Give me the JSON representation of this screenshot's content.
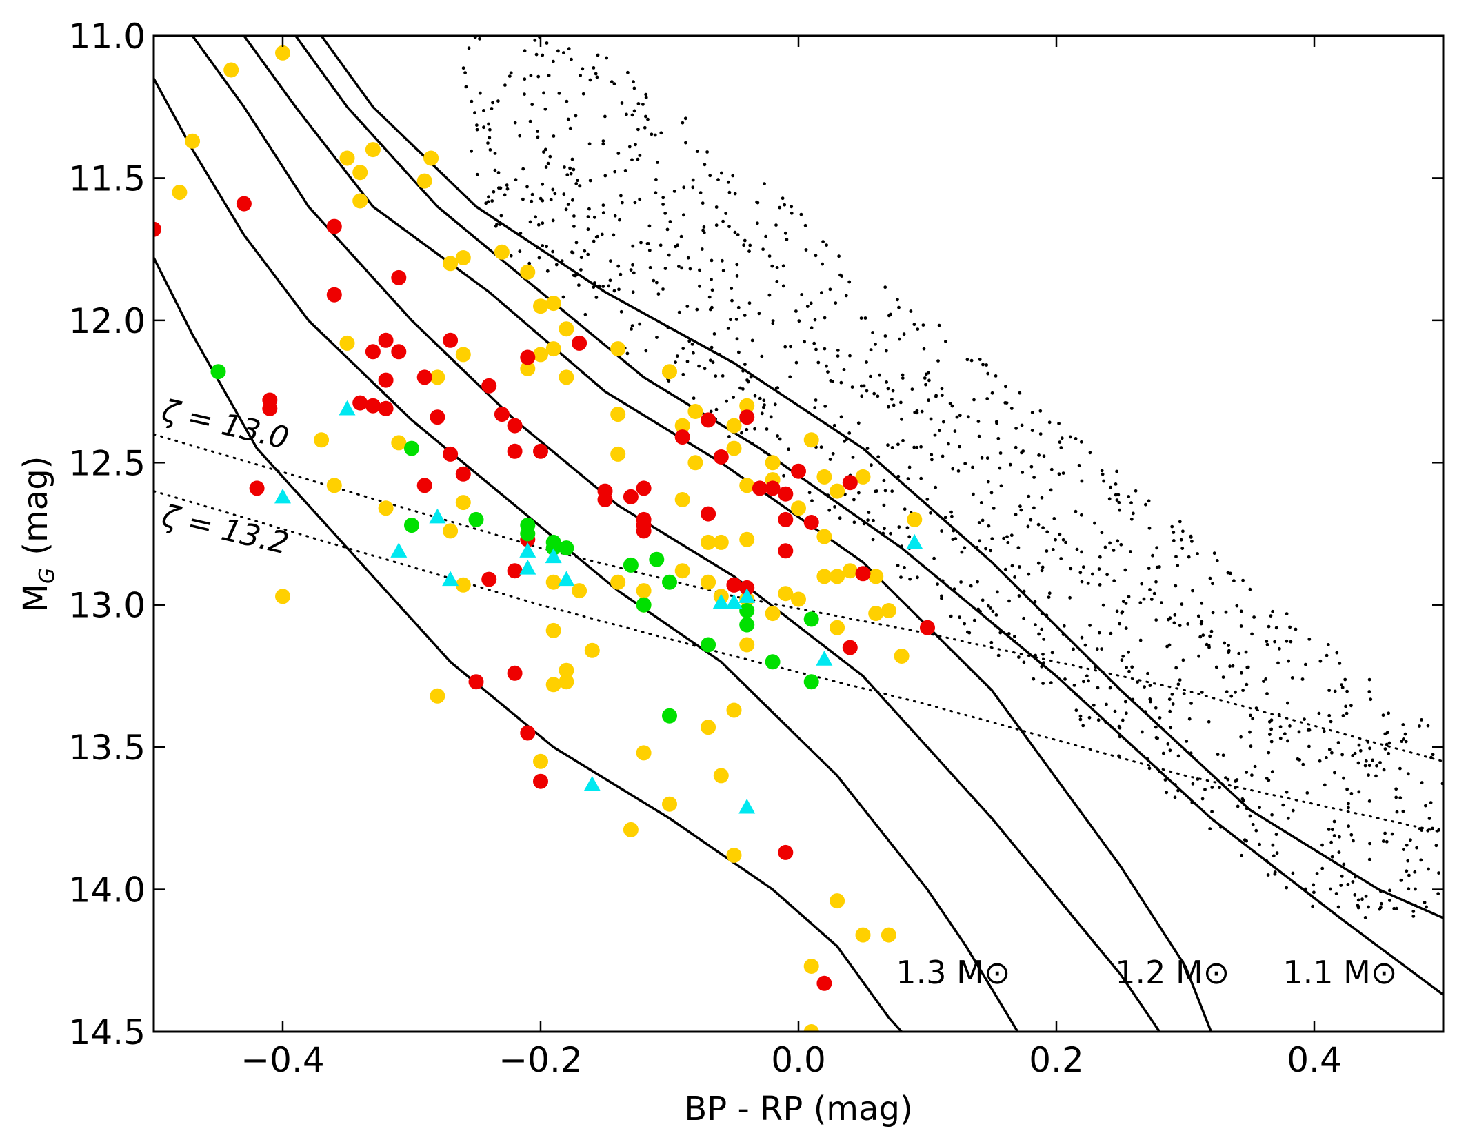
{
  "chart_data": {
    "type": "scatter",
    "xlabel": "BP - RP (mag)",
    "ylabel": "M_G (mag)",
    "ylabel_main": "M",
    "ylabel_sub": "G",
    "ylabel_unit": "(mag)",
    "xlim": [
      -0.5,
      0.5
    ],
    "ylim": [
      14.5,
      11.0
    ],
    "y_inverted": true,
    "x_ticks": [
      -0.4,
      -0.2,
      0.0,
      0.2,
      0.4
    ],
    "x_tick_labels": [
      "−0.4",
      "−0.2",
      "0.0",
      "0.2",
      "0.4"
    ],
    "y_ticks": [
      11.0,
      11.5,
      12.0,
      12.5,
      13.0,
      13.5,
      14.0,
      14.5
    ],
    "y_tick_labels": [
      "11.0",
      "11.5",
      "12.0",
      "12.5",
      "13.0",
      "13.5",
      "14.0",
      "14.5"
    ],
    "colors": {
      "yellow": "#ffd000",
      "red": "#ee0000",
      "green": "#00e000",
      "cyan": "#00e8f0",
      "line": "#000000",
      "background": "#ffffff"
    },
    "mass_tracks": [
      {
        "label": "1.1 M⊙",
        "label_pos": [
          0.42,
          14.33
        ],
        "points": [
          [
            -0.37,
            11.0
          ],
          [
            -0.33,
            11.25
          ],
          [
            -0.25,
            11.6
          ],
          [
            -0.15,
            11.9
          ],
          [
            -0.05,
            12.15
          ],
          [
            0.05,
            12.45
          ],
          [
            0.15,
            12.85
          ],
          [
            0.25,
            13.3
          ],
          [
            0.35,
            13.72
          ],
          [
            0.45,
            14.0
          ],
          [
            0.5,
            14.1
          ]
        ]
      },
      {
        "label": "",
        "points": [
          [
            -0.39,
            11.0
          ],
          [
            -0.35,
            11.25
          ],
          [
            -0.28,
            11.6
          ],
          [
            -0.2,
            11.9
          ],
          [
            -0.12,
            12.2
          ],
          [
            -0.03,
            12.45
          ],
          [
            0.08,
            12.8
          ],
          [
            0.2,
            13.25
          ],
          [
            0.32,
            13.75
          ],
          [
            0.42,
            14.1
          ],
          [
            0.5,
            14.37
          ]
        ]
      },
      {
        "label": "1.2 M⊙",
        "label_pos": [
          0.29,
          14.33
        ],
        "points": [
          [
            -0.43,
            11.0
          ],
          [
            -0.39,
            11.25
          ],
          [
            -0.33,
            11.6
          ],
          [
            -0.24,
            11.9
          ],
          [
            -0.15,
            12.25
          ],
          [
            -0.06,
            12.5
          ],
          [
            0.05,
            12.85
          ],
          [
            0.15,
            13.3
          ],
          [
            0.25,
            13.92
          ],
          [
            0.3,
            14.27
          ],
          [
            0.32,
            14.5
          ]
        ]
      },
      {
        "label": "",
        "points": [
          [
            -0.47,
            11.0
          ],
          [
            -0.43,
            11.25
          ],
          [
            -0.38,
            11.6
          ],
          [
            -0.3,
            12.0
          ],
          [
            -0.22,
            12.35
          ],
          [
            -0.14,
            12.65
          ],
          [
            -0.05,
            12.9
          ],
          [
            0.05,
            13.25
          ],
          [
            0.15,
            13.75
          ],
          [
            0.25,
            14.3
          ],
          [
            0.28,
            14.5
          ]
        ]
      },
      {
        "label": "1.3 M⊙",
        "label_pos": [
          0.12,
          14.33
        ],
        "points": [
          [
            -0.5,
            11.15
          ],
          [
            -0.47,
            11.4
          ],
          [
            -0.43,
            11.7
          ],
          [
            -0.38,
            12.0
          ],
          [
            -0.3,
            12.35
          ],
          [
            -0.22,
            12.65
          ],
          [
            -0.14,
            12.95
          ],
          [
            -0.06,
            13.2
          ],
          [
            0.03,
            13.6
          ],
          [
            0.1,
            14.0
          ],
          [
            0.13,
            14.2
          ],
          [
            0.17,
            14.5
          ]
        ]
      },
      {
        "label": "",
        "points": [
          [
            -0.5,
            11.78
          ],
          [
            -0.47,
            12.05
          ],
          [
            -0.42,
            12.45
          ],
          [
            -0.35,
            12.8
          ],
          [
            -0.27,
            13.2
          ],
          [
            -0.19,
            13.5
          ],
          [
            -0.1,
            13.75
          ],
          [
            -0.02,
            14.0
          ],
          [
            0.03,
            14.2
          ],
          [
            0.07,
            14.45
          ],
          [
            0.08,
            14.5
          ]
        ]
      }
    ],
    "iso_zeta_lines": [
      {
        "label": "ζ = 13.0",
        "label_pos": [
          -0.495,
          12.35
        ],
        "label_angle": 13,
        "points": [
          [
            -0.5,
            12.4
          ],
          [
            -0.35,
            12.6
          ],
          [
            -0.2,
            12.8
          ],
          [
            -0.05,
            12.97
          ],
          [
            0.1,
            13.1
          ],
          [
            0.3,
            13.3
          ],
          [
            0.5,
            13.55
          ]
        ]
      },
      {
        "label": "ζ = 13.2",
        "label_pos": [
          -0.495,
          12.72
        ],
        "label_angle": 13,
        "points": [
          [
            -0.5,
            12.6
          ],
          [
            -0.35,
            12.8
          ],
          [
            -0.2,
            13.0
          ],
          [
            -0.05,
            13.18
          ],
          [
            0.1,
            13.35
          ],
          [
            0.3,
            13.6
          ],
          [
            0.5,
            13.8
          ]
        ]
      }
    ],
    "series": [
      {
        "name": "yellow",
        "marker": "circle",
        "points": [
          [
            -0.48,
            11.55
          ],
          [
            -0.47,
            11.37
          ],
          [
            -0.44,
            11.12
          ],
          [
            -0.4,
            11.06
          ],
          [
            -0.37,
            12.42
          ],
          [
            -0.35,
            11.43
          ],
          [
            -0.34,
            11.48
          ],
          [
            -0.34,
            11.58
          ],
          [
            -0.33,
            11.4
          ],
          [
            -0.35,
            12.08
          ],
          [
            -0.32,
            12.66
          ],
          [
            -0.31,
            12.43
          ],
          [
            -0.29,
            11.51
          ],
          [
            -0.28,
            12.2
          ],
          [
            -0.285,
            11.43
          ],
          [
            -0.27,
            11.8
          ],
          [
            -0.26,
            11.78
          ],
          [
            -0.26,
            12.12
          ],
          [
            -0.26,
            12.64
          ],
          [
            -0.27,
            12.74
          ],
          [
            -0.26,
            12.93
          ],
          [
            -0.23,
            11.76
          ],
          [
            -0.21,
            11.83
          ],
          [
            -0.2,
            11.95
          ],
          [
            -0.19,
            11.94
          ],
          [
            -0.19,
            12.1
          ],
          [
            -0.2,
            12.12
          ],
          [
            -0.21,
            12.17
          ],
          [
            -0.18,
            12.2
          ],
          [
            -0.18,
            12.03
          ],
          [
            -0.14,
            12.1
          ],
          [
            -0.14,
            12.47
          ],
          [
            -0.14,
            12.33
          ],
          [
            -0.14,
            12.92
          ],
          [
            -0.19,
            12.92
          ],
          [
            -0.17,
            12.95
          ],
          [
            -0.19,
            13.09
          ],
          [
            -0.18,
            13.23
          ],
          [
            -0.18,
            13.27
          ],
          [
            -0.19,
            13.28
          ],
          [
            -0.16,
            13.16
          ],
          [
            -0.28,
            13.32
          ],
          [
            -0.12,
            13.0
          ],
          [
            -0.12,
            12.95
          ],
          [
            -0.1,
            12.18
          ],
          [
            -0.09,
            12.37
          ],
          [
            -0.09,
            12.63
          ],
          [
            -0.09,
            12.88
          ],
          [
            -0.08,
            12.32
          ],
          [
            -0.08,
            12.5
          ],
          [
            -0.07,
            12.92
          ],
          [
            -0.07,
            12.78
          ],
          [
            -0.06,
            12.78
          ],
          [
            -0.05,
            12.45
          ],
          [
            -0.05,
            12.37
          ],
          [
            -0.04,
            12.3
          ],
          [
            -0.04,
            12.58
          ],
          [
            -0.04,
            12.77
          ],
          [
            -0.02,
            12.5
          ],
          [
            -0.02,
            12.56
          ],
          [
            0.0,
            12.66
          ],
          [
            0.01,
            12.42
          ],
          [
            0.02,
            12.55
          ],
          [
            0.02,
            12.76
          ],
          [
            0.03,
            12.6
          ],
          [
            0.03,
            12.9
          ],
          [
            0.04,
            12.88
          ],
          [
            0.05,
            12.55
          ],
          [
            0.06,
            12.9
          ],
          [
            0.06,
            13.03
          ],
          [
            0.07,
            13.02
          ],
          [
            0.08,
            13.18
          ],
          [
            -0.06,
            12.97
          ],
          [
            -0.04,
            12.98
          ],
          [
            -0.04,
            13.14
          ],
          [
            -0.02,
            13.03
          ],
          [
            -0.01,
            12.96
          ],
          [
            0.0,
            12.98
          ],
          [
            0.02,
            12.9
          ],
          [
            0.03,
            13.08
          ],
          [
            -0.05,
            13.37
          ],
          [
            -0.07,
            13.43
          ],
          [
            -0.06,
            13.6
          ],
          [
            -0.05,
            13.88
          ],
          [
            -0.1,
            13.7
          ],
          [
            -0.12,
            13.52
          ],
          [
            -0.13,
            13.79
          ],
          [
            -0.2,
            13.55
          ],
          [
            0.03,
            14.04
          ],
          [
            0.05,
            14.16
          ],
          [
            0.07,
            14.16
          ],
          [
            0.01,
            14.27
          ],
          [
            0.01,
            14.5
          ],
          [
            -0.4,
            12.97
          ],
          [
            -0.36,
            12.58
          ],
          [
            0.09,
            12.7
          ]
        ]
      },
      {
        "name": "red",
        "marker": "circle",
        "points": [
          [
            -0.5,
            11.68
          ],
          [
            -0.43,
            11.59
          ],
          [
            -0.36,
            11.67
          ],
          [
            -0.36,
            11.91
          ],
          [
            -0.31,
            11.85
          ],
          [
            -0.33,
            12.11
          ],
          [
            -0.32,
            12.07
          ],
          [
            -0.31,
            12.11
          ],
          [
            -0.32,
            12.21
          ],
          [
            -0.29,
            12.2
          ],
          [
            -0.27,
            12.07
          ],
          [
            -0.34,
            12.29
          ],
          [
            -0.33,
            12.3
          ],
          [
            -0.41,
            12.28
          ],
          [
            -0.41,
            12.31
          ],
          [
            -0.32,
            12.31
          ],
          [
            -0.28,
            12.34
          ],
          [
            -0.27,
            12.47
          ],
          [
            -0.26,
            12.54
          ],
          [
            -0.29,
            12.58
          ],
          [
            -0.42,
            12.59
          ],
          [
            -0.24,
            12.23
          ],
          [
            -0.23,
            12.33
          ],
          [
            -0.22,
            12.37
          ],
          [
            -0.21,
            12.13
          ],
          [
            -0.2,
            12.46
          ],
          [
            -0.22,
            12.46
          ],
          [
            -0.17,
            12.08
          ],
          [
            -0.15,
            12.6
          ],
          [
            -0.15,
            12.63
          ],
          [
            -0.13,
            12.62
          ],
          [
            -0.12,
            12.59
          ],
          [
            -0.12,
            12.72
          ],
          [
            -0.12,
            12.74
          ],
          [
            -0.12,
            12.7
          ],
          [
            -0.09,
            12.41
          ],
          [
            -0.07,
            12.35
          ],
          [
            -0.06,
            12.48
          ],
          [
            -0.05,
            12.93
          ],
          [
            -0.04,
            12.34
          ],
          [
            -0.03,
            12.59
          ],
          [
            -0.02,
            12.59
          ],
          [
            -0.01,
            12.61
          ],
          [
            -0.01,
            12.7
          ],
          [
            0.0,
            12.53
          ],
          [
            0.01,
            12.71
          ],
          [
            -0.01,
            12.81
          ],
          [
            0.04,
            12.57
          ],
          [
            0.05,
            12.89
          ],
          [
            0.04,
            13.15
          ],
          [
            0.1,
            13.08
          ],
          [
            -0.22,
            12.88
          ],
          [
            -0.24,
            12.91
          ],
          [
            -0.21,
            12.77
          ],
          [
            -0.22,
            13.24
          ],
          [
            -0.25,
            13.27
          ],
          [
            -0.21,
            13.45
          ],
          [
            -0.2,
            13.62
          ],
          [
            -0.07,
            12.68
          ],
          [
            -0.05,
            12.93
          ],
          [
            0.02,
            14.33
          ],
          [
            -0.01,
            13.87
          ],
          [
            -0.04,
            12.94
          ]
        ]
      },
      {
        "name": "green",
        "marker": "circle",
        "points": [
          [
            -0.45,
            12.18
          ],
          [
            -0.3,
            12.45
          ],
          [
            -0.3,
            12.72
          ],
          [
            -0.25,
            12.7
          ],
          [
            -0.21,
            12.72
          ],
          [
            -0.21,
            12.75
          ],
          [
            -0.19,
            12.78
          ],
          [
            -0.18,
            12.8
          ],
          [
            -0.13,
            12.86
          ],
          [
            -0.11,
            12.84
          ],
          [
            -0.1,
            12.92
          ],
          [
            -0.12,
            13.0
          ],
          [
            -0.07,
            13.14
          ],
          [
            -0.04,
            13.02
          ],
          [
            -0.04,
            13.07
          ],
          [
            -0.02,
            13.2
          ],
          [
            0.01,
            13.05
          ],
          [
            0.01,
            13.27
          ],
          [
            -0.1,
            13.39
          ],
          [
            -0.19,
            12.8
          ]
        ]
      },
      {
        "name": "cyan",
        "marker": "triangle",
        "points": [
          [
            -0.35,
            12.31
          ],
          [
            -0.4,
            12.62
          ],
          [
            -0.31,
            12.81
          ],
          [
            -0.28,
            12.69
          ],
          [
            -0.27,
            12.91
          ],
          [
            -0.21,
            12.81
          ],
          [
            -0.21,
            12.87
          ],
          [
            -0.19,
            12.83
          ],
          [
            -0.18,
            12.91
          ],
          [
            -0.06,
            12.99
          ],
          [
            -0.05,
            12.99
          ],
          [
            -0.04,
            12.97
          ],
          [
            -0.04,
            13.71
          ],
          [
            -0.16,
            13.63
          ],
          [
            0.02,
            13.19
          ],
          [
            0.09,
            12.78
          ]
        ]
      }
    ]
  }
}
